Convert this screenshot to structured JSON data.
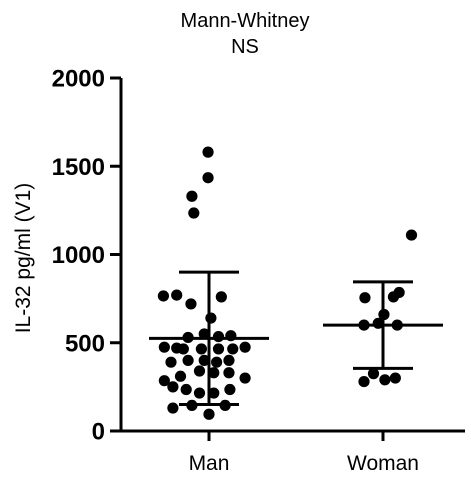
{
  "chart_data": {
    "type": "scatter",
    "title": "Mann-Whitney",
    "subtitle": "NS",
    "ylabel": "IL-32 pg/ml (V1)",
    "xlabel": "",
    "ylim": [
      0,
      2000
    ],
    "yticks": [
      0,
      500,
      1000,
      1500,
      2000
    ],
    "grid": false,
    "categories": [
      "Man",
      "Woman"
    ],
    "series": [
      {
        "category": "Man",
        "mean": 525,
        "sd_upper": 900,
        "sd_lower": 150,
        "points": [
          {
            "x": -0.38,
            "y": 130
          },
          {
            "x": -0.18,
            "y": 145
          },
          {
            "x": 0,
            "y": 95
          },
          {
            "x": 0.17,
            "y": 145
          },
          {
            "x": -0.38,
            "y": 250
          },
          {
            "x": -0.24,
            "y": 235
          },
          {
            "x": -0.1,
            "y": 215
          },
          {
            "x": 0.05,
            "y": 215
          },
          {
            "x": 0.22,
            "y": 235
          },
          {
            "x": -0.47,
            "y": 285
          },
          {
            "x": -0.3,
            "y": 310
          },
          {
            "x": -0.1,
            "y": 340
          },
          {
            "x": 0.05,
            "y": 330
          },
          {
            "x": 0.21,
            "y": 330
          },
          {
            "x": 0.38,
            "y": 300
          },
          {
            "x": -0.4,
            "y": 390
          },
          {
            "x": -0.22,
            "y": 400
          },
          {
            "x": -0.05,
            "y": 400
          },
          {
            "x": 0.08,
            "y": 390
          },
          {
            "x": 0.21,
            "y": 400
          },
          {
            "x": -0.27,
            "y": 465
          },
          {
            "x": -0.08,
            "y": 465
          },
          {
            "x": 0.1,
            "y": 465
          },
          {
            "x": 0.25,
            "y": 465
          },
          {
            "x": -0.47,
            "y": 475
          },
          {
            "x": -0.34,
            "y": 470
          },
          {
            "x": 0.38,
            "y": 475
          },
          {
            "x": -0.22,
            "y": 530
          },
          {
            "x": -0.05,
            "y": 550
          },
          {
            "x": 0.1,
            "y": 535
          },
          {
            "x": 0.23,
            "y": 540
          },
          {
            "x": 0.02,
            "y": 640
          },
          {
            "x": -0.48,
            "y": 765
          },
          {
            "x": -0.34,
            "y": 770
          },
          {
            "x": -0.19,
            "y": 720
          },
          {
            "x": 0.13,
            "y": 760
          },
          {
            "x": -0.16,
            "y": 1235
          },
          {
            "x": -0.18,
            "y": 1330
          },
          {
            "x": -0.01,
            "y": 1435
          },
          {
            "x": -0.01,
            "y": 1580
          }
        ]
      },
      {
        "category": "Woman",
        "mean": 600,
        "sd_upper": 845,
        "sd_lower": 355,
        "points": [
          {
            "x": 0.3,
            "y": 1110
          },
          {
            "x": -0.19,
            "y": 755
          },
          {
            "x": 0.11,
            "y": 760
          },
          {
            "x": 0.17,
            "y": 785
          },
          {
            "x": 0.01,
            "y": 660
          },
          {
            "x": -0.2,
            "y": 600
          },
          {
            "x": 0.15,
            "y": 600
          },
          {
            "x": -0.05,
            "y": 610
          },
          {
            "x": -0.1,
            "y": 325
          },
          {
            "x": 0.02,
            "y": 290
          },
          {
            "x": 0.13,
            "y": 300
          },
          {
            "x": -0.2,
            "y": 280
          }
        ]
      }
    ],
    "colors": {
      "marks": "#000000"
    }
  }
}
